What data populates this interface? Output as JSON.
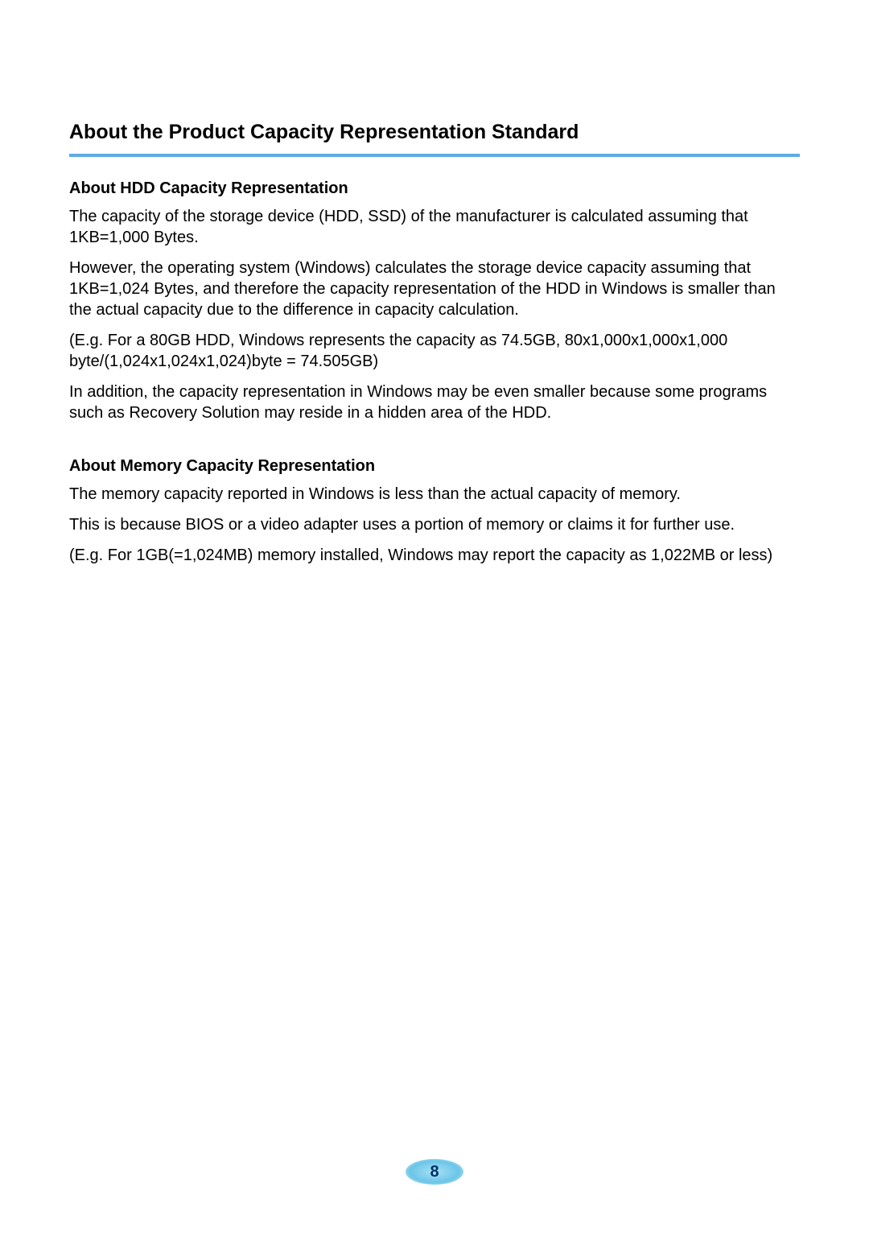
{
  "mainHeading": "About the Product Capacity Representation Standard",
  "sections": [
    {
      "heading": "About HDD Capacity Representation",
      "paragraphs": [
        "The capacity of the storage device (HDD, SSD) of the manufacturer is calculated assuming that 1KB=1,000 Bytes.",
        "However, the operating system (Windows) calculates the storage device capacity assuming that 1KB=1,024 Bytes, and therefore the capacity representation of the HDD in Windows is smaller than the actual capacity due to the difference in capacity calculation.",
        "(E.g. For a 80GB HDD, Windows represents the capacity as 74.5GB, 80x1,000x1,000x1,000 byte/(1,024x1,024x1,024)byte = 74.505GB)",
        "In addition, the capacity representation in Windows may be even smaller because some programs such as Recovery Solution may reside in a hidden area of the HDD."
      ]
    },
    {
      "heading": "About Memory Capacity Representation",
      "paragraphs": [
        "The memory capacity reported in Windows is less than the actual capacity of memory.",
        "This is because BIOS or a video adapter uses a portion of memory or claims it for further use.",
        "(E.g. For 1GB(=1,024MB) memory installed, Windows may report the capacity as 1,022MB or less)"
      ]
    }
  ],
  "pageNumber": "8",
  "colors": {
    "underline": "#5dade2",
    "text": "#000000",
    "background": "#ffffff",
    "badgeGradientStart": "#a8e0f5",
    "badgeGradientMid": "#6bc5e8",
    "pageNumberColor": "#003366"
  },
  "typography": {
    "mainHeadingSize": 25,
    "subHeadingSize": 20,
    "paragraphSize": 20,
    "pageNumberSize": 20
  }
}
